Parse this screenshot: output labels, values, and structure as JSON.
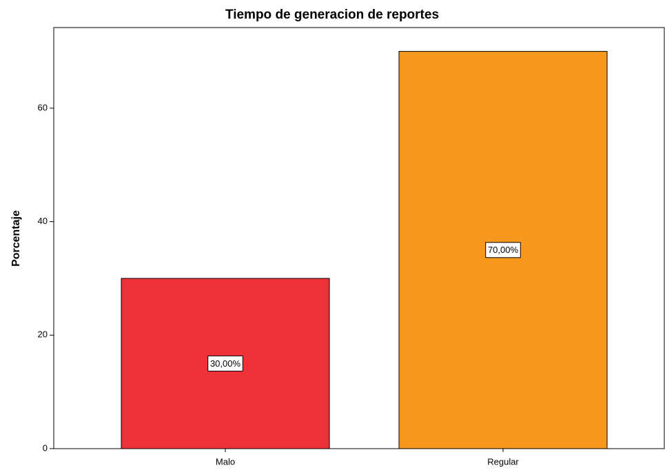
{
  "chart_data": {
    "type": "bar",
    "title": "Tiempo de generacion de reportes",
    "y_label": "Porcentaje",
    "categories": [
      "Malo",
      "Regular"
    ],
    "values": [
      30,
      70
    ],
    "value_labels": [
      "30,00%",
      "70,00%"
    ],
    "colors": [
      "#ef3139",
      "#f7981e"
    ],
    "ylim": [
      0,
      74.2
    ],
    "yticks": [
      0,
      20,
      40,
      60
    ],
    "grid": false
  }
}
